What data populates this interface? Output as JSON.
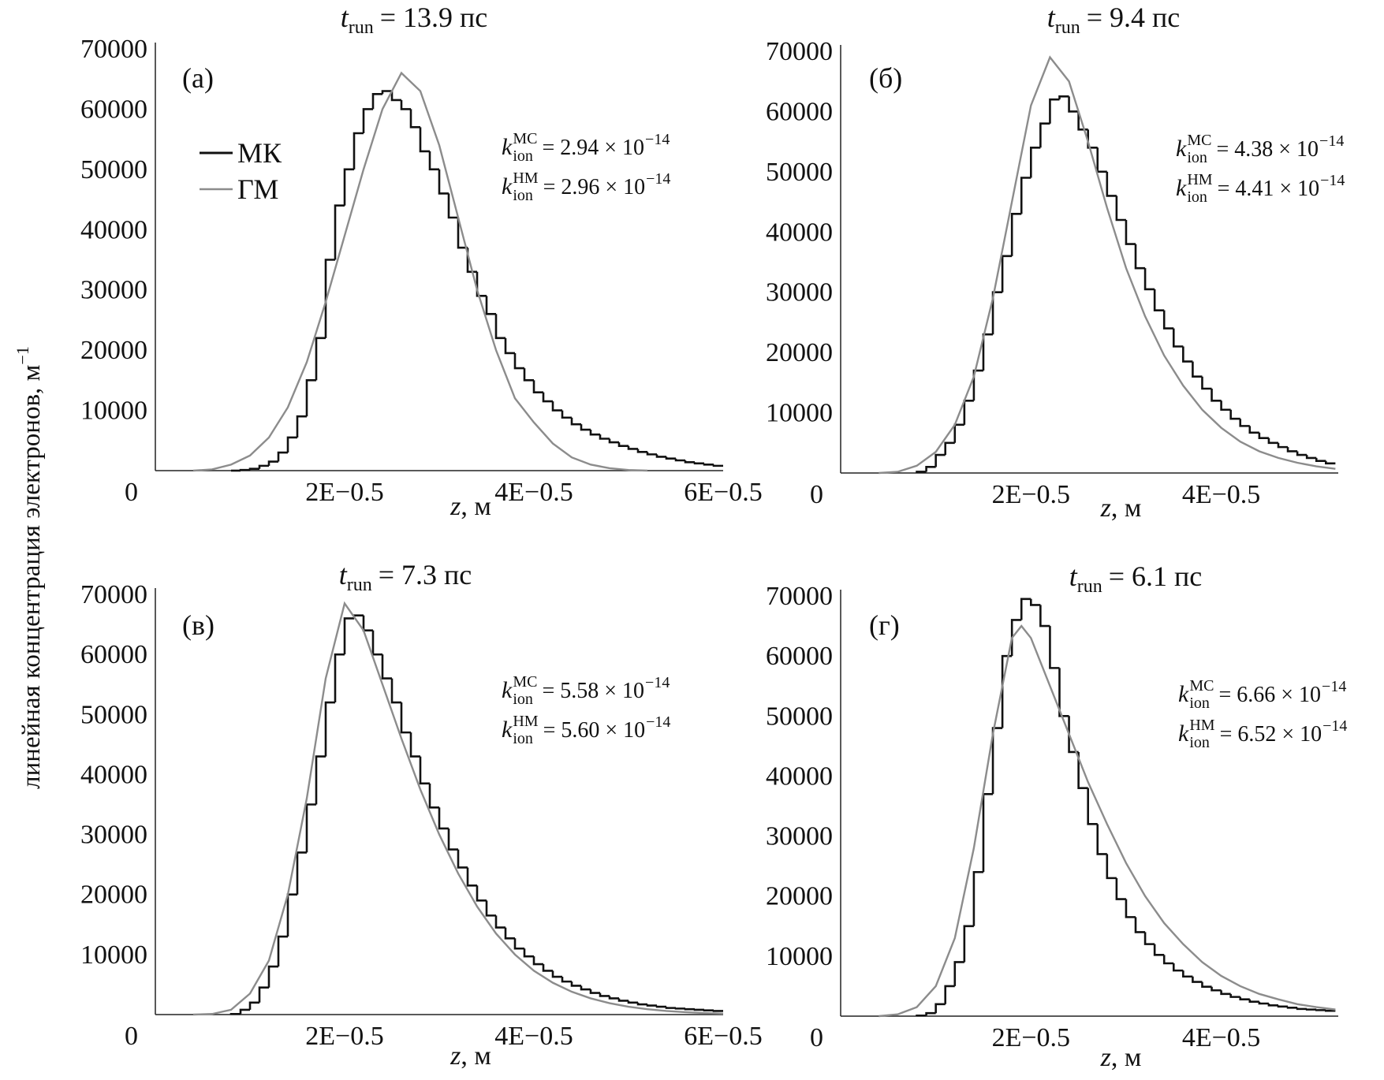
{
  "ylabel": {
    "text": "линейная концентрация электронов, м",
    "sup": "−1"
  },
  "chart_data": [
    {
      "type": "histogram",
      "title": {
        "var": "t",
        "sub": "run",
        "rest": "= 13.9 пс"
      },
      "panel": "(а)",
      "xlabel": {
        "var": "z",
        "rest": ", м"
      },
      "xlim": [
        0,
        6e-05
      ],
      "ylim": [
        0,
        70000
      ],
      "xticks": [
        {
          "value": 2e-05,
          "label": "2E−0.5"
        },
        {
          "value": 4e-05,
          "label": "4E−0.5"
        },
        {
          "value": 6e-05,
          "label": "6E−0.5"
        }
      ],
      "yticks": [
        0,
        10000,
        20000,
        30000,
        40000,
        50000,
        60000,
        70000
      ],
      "legend": "upper left",
      "annotations": [
        {
          "var": "k",
          "sub": "ion",
          "sup": "MC",
          "text": "= 2.94 × 10",
          "exp": "−14"
        },
        {
          "var": "k",
          "sub": "ion",
          "sup": "HM",
          "text": "= 2.96 × 10",
          "exp": "−14"
        }
      ],
      "series": [
        {
          "name": "МК",
          "type": "step",
          "color": "#111111",
          "bins": [
            8e-06,
            9e-06,
            1e-05,
            1.1e-05,
            1.2e-05,
            1.3e-05,
            1.4e-05,
            1.5e-05,
            1.6e-05,
            1.7e-05,
            1.8e-05,
            1.9e-05,
            2e-05,
            2.1e-05,
            2.2e-05,
            2.3e-05,
            2.4e-05,
            2.5e-05,
            2.6e-05,
            2.7e-05,
            2.8e-05,
            2.9e-05,
            3e-05,
            3.1e-05,
            3.2e-05,
            3.3e-05,
            3.4e-05,
            3.5e-05,
            3.6e-05,
            3.7e-05,
            3.8e-05,
            3.9e-05,
            4e-05,
            4.1e-05,
            4.2e-05,
            4.3e-05,
            4.4e-05,
            4.5e-05,
            4.6e-05,
            4.7e-05,
            4.8e-05,
            4.9e-05,
            5e-05,
            5.1e-05,
            5.2e-05,
            5.3e-05,
            5.4e-05,
            5.5e-05,
            5.6e-05,
            5.7e-05,
            5.8e-05,
            5.9e-05,
            6e-05
          ],
          "values": [
            0,
            100,
            300,
            800,
            1500,
            3000,
            5500,
            9000,
            15000,
            22000,
            35000,
            44000,
            50000,
            56000,
            60000,
            62500,
            63000,
            61500,
            60000,
            57000,
            53000,
            50000,
            46000,
            42000,
            37000,
            33000,
            29000,
            26000,
            22000,
            19500,
            17000,
            15000,
            13000,
            11500,
            10000,
            8800,
            7700,
            6800,
            6000,
            5300,
            4700,
            4100,
            3600,
            3100,
            2700,
            2300,
            2000,
            1700,
            1400,
            1200,
            1000,
            800
          ]
        },
        {
          "name": "ГМ",
          "type": "line",
          "color": "#8c8c8c",
          "x": [
            4e-06,
            6e-06,
            8e-06,
            1e-05,
            1.2e-05,
            1.4e-05,
            1.6e-05,
            1.8e-05,
            2e-05,
            2.2e-05,
            2.4e-05,
            2.6e-05,
            2.8e-05,
            3e-05,
            3.2e-05,
            3.4e-05,
            3.6e-05,
            3.8e-05,
            4e-05,
            4.2e-05,
            4.4e-05,
            4.6e-05,
            4.8e-05,
            5e-05,
            5.2e-05
          ],
          "values": [
            0,
            200,
            1000,
            2500,
            5500,
            10500,
            18000,
            28000,
            39000,
            50000,
            60000,
            66000,
            63000,
            54000,
            42000,
            30000,
            20000,
            12000,
            8000,
            4500,
            2200,
            1000,
            400,
            100,
            0
          ]
        }
      ]
    },
    {
      "type": "histogram",
      "title": {
        "var": "t",
        "sub": "run",
        "rest": "= 9.4 пс"
      },
      "panel": "(б)",
      "xlabel": {
        "var": "z",
        "rest": ", м"
      },
      "xlim": [
        0,
        5.23e-05
      ],
      "ylim": [
        0,
        70000
      ],
      "xticks": [
        {
          "value": 2e-05,
          "label": "2E−0.5"
        },
        {
          "value": 4e-05,
          "label": "4E−0.5"
        }
      ],
      "yticks": [
        0,
        10000,
        20000,
        30000,
        40000,
        50000,
        60000,
        70000
      ],
      "annotations": [
        {
          "var": "k",
          "sub": "ion",
          "sup": "MC",
          "text": "= 4.38 × 10",
          "exp": "−14"
        },
        {
          "var": "k",
          "sub": "ion",
          "sup": "HM",
          "text": "= 4.41 × 10",
          "exp": "−14"
        }
      ],
      "series": [
        {
          "type": "step",
          "color": "#111111",
          "bins": [
            8e-06,
            9e-06,
            1e-05,
            1.1e-05,
            1.2e-05,
            1.3e-05,
            1.4e-05,
            1.5e-05,
            1.6e-05,
            1.7e-05,
            1.8e-05,
            1.9e-05,
            2e-05,
            2.1e-05,
            2.2e-05,
            2.3e-05,
            2.4e-05,
            2.5e-05,
            2.6e-05,
            2.7e-05,
            2.8e-05,
            2.9e-05,
            3e-05,
            3.1e-05,
            3.2e-05,
            3.3e-05,
            3.4e-05,
            3.5e-05,
            3.6e-05,
            3.7e-05,
            3.8e-05,
            3.9e-05,
            4e-05,
            4.1e-05,
            4.2e-05,
            4.3e-05,
            4.4e-05,
            4.5e-05,
            4.6e-05,
            4.7e-05,
            4.8e-05,
            4.9e-05,
            5e-05,
            5.1e-05,
            5.2e-05
          ],
          "values": [
            200,
            1000,
            3000,
            5000,
            8000,
            12000,
            17000,
            23000,
            30000,
            36000,
            43000,
            49000,
            54000,
            58000,
            62000,
            62500,
            60000,
            57000,
            54000,
            50000,
            46000,
            42000,
            38000,
            34000,
            30500,
            27000,
            24000,
            21000,
            18500,
            16000,
            14000,
            12000,
            10500,
            9000,
            7800,
            6700,
            5800,
            5000,
            4300,
            3600,
            3000,
            2500,
            2000,
            1600
          ]
        },
        {
          "type": "line",
          "color": "#8c8c8c",
          "x": [
            4e-06,
            6e-06,
            8e-06,
            1e-05,
            1.2e-05,
            1.4e-05,
            1.6e-05,
            1.8e-05,
            2e-05,
            2.2e-05,
            2.4e-05,
            2.6e-05,
            2.8e-05,
            3e-05,
            3.2e-05,
            3.4e-05,
            3.6e-05,
            3.8e-05,
            4e-05,
            4.2e-05,
            4.4e-05,
            4.6e-05,
            4.8e-05,
            5e-05,
            5.2e-05
          ],
          "values": [
            0,
            200,
            1200,
            3500,
            8000,
            16000,
            29000,
            45000,
            61000,
            69000,
            65000,
            55000,
            44000,
            34000,
            26000,
            19500,
            14500,
            10500,
            7500,
            5200,
            3600,
            2500,
            1700,
            1100,
            700
          ]
        }
      ]
    },
    {
      "type": "histogram",
      "title": {
        "var": "t",
        "sub": "run",
        "rest": "= 7.3 пс"
      },
      "panel": "(в)",
      "xlabel": {
        "var": "z",
        "rest": ", м"
      },
      "xlim": [
        0,
        6e-05
      ],
      "ylim": [
        0,
        70000
      ],
      "xticks": [
        {
          "value": 2e-05,
          "label": "2E−0.5"
        },
        {
          "value": 4e-05,
          "label": "4E−0.5"
        },
        {
          "value": 6e-05,
          "label": "6E−0.5"
        }
      ],
      "yticks": [
        0,
        10000,
        20000,
        30000,
        40000,
        50000,
        60000,
        70000
      ],
      "annotations": [
        {
          "var": "k",
          "sub": "ion",
          "sup": "MC",
          "text": "= 5.58 × 10",
          "exp": "−14"
        },
        {
          "var": "k",
          "sub": "ion",
          "sup": "HM",
          "text": "= 5.60 × 10",
          "exp": "−14"
        }
      ],
      "series": [
        {
          "type": "step",
          "color": "#111111",
          "bins": [
            8e-06,
            9e-06,
            1e-05,
            1.1e-05,
            1.2e-05,
            1.3e-05,
            1.4e-05,
            1.5e-05,
            1.6e-05,
            1.7e-05,
            1.8e-05,
            1.9e-05,
            2e-05,
            2.1e-05,
            2.2e-05,
            2.3e-05,
            2.4e-05,
            2.5e-05,
            2.6e-05,
            2.7e-05,
            2.8e-05,
            2.9e-05,
            3e-05,
            3.1e-05,
            3.2e-05,
            3.3e-05,
            3.4e-05,
            3.5e-05,
            3.6e-05,
            3.7e-05,
            3.8e-05,
            3.9e-05,
            4e-05,
            4.1e-05,
            4.2e-05,
            4.3e-05,
            4.4e-05,
            4.5e-05,
            4.6e-05,
            4.7e-05,
            4.8e-05,
            4.9e-05,
            5e-05,
            5.1e-05,
            5.2e-05,
            5.3e-05,
            5.4e-05,
            5.5e-05,
            5.6e-05,
            5.7e-05,
            5.8e-05,
            5.9e-05,
            6e-05
          ],
          "values": [
            100,
            800,
            2000,
            4500,
            8000,
            13000,
            20000,
            27000,
            35000,
            43000,
            52000,
            60000,
            66000,
            66500,
            64000,
            60000,
            56000,
            52000,
            47000,
            43000,
            38500,
            34500,
            31000,
            27500,
            24500,
            21500,
            19000,
            16500,
            14500,
            12700,
            11000,
            9700,
            8400,
            7300,
            6300,
            5500,
            4800,
            4200,
            3600,
            3100,
            2700,
            2300,
            2000,
            1700,
            1500,
            1300,
            1100,
            1000,
            900,
            800,
            700,
            600
          ]
        },
        {
          "type": "line",
          "color": "#8c8c8c",
          "x": [
            4e-06,
            6e-06,
            8e-06,
            1e-05,
            1.2e-05,
            1.4e-05,
            1.6e-05,
            1.8e-05,
            2e-05,
            2.2e-05,
            2.4e-05,
            2.6e-05,
            2.8e-05,
            3e-05,
            3.2e-05,
            3.4e-05,
            3.6e-05,
            3.8e-05,
            4e-05,
            4.2e-05,
            4.4e-05,
            4.6e-05,
            4.8e-05,
            5e-05,
            5.2e-05,
            5.4e-05,
            5.6e-05,
            5.8e-05,
            6e-05
          ],
          "values": [
            0,
            100,
            800,
            3500,
            9000,
            20000,
            36000,
            56000,
            68500,
            64000,
            55000,
            46000,
            37500,
            30000,
            23500,
            18000,
            13500,
            10000,
            7300,
            5300,
            3800,
            2700,
            1900,
            1300,
            900,
            600,
            400,
            250,
            150
          ]
        }
      ]
    },
    {
      "type": "histogram",
      "title": {
        "var": "t",
        "sub": "run",
        "rest": "= 6.1 пс"
      },
      "panel": "(г)",
      "xlabel": {
        "var": "z",
        "rest": ", м"
      },
      "xlim": [
        0,
        5.23e-05
      ],
      "ylim": [
        0,
        70000
      ],
      "xticks": [
        {
          "value": 2e-05,
          "label": "2E−0.5"
        },
        {
          "value": 4e-05,
          "label": "4E−0.5"
        }
      ],
      "yticks": [
        0,
        10000,
        20000,
        30000,
        40000,
        50000,
        60000,
        70000
      ],
      "annotations": [
        {
          "var": "k",
          "sub": "ion",
          "sup": "MC",
          "text": "= 6.66 × 10",
          "exp": "−14"
        },
        {
          "var": "k",
          "sub": "ion",
          "sup": "HM",
          "text": "= 6.52 × 10",
          "exp": "−14"
        }
      ],
      "series": [
        {
          "type": "step",
          "color": "#111111",
          "bins": [
            8e-06,
            9e-06,
            1e-05,
            1.1e-05,
            1.2e-05,
            1.3e-05,
            1.4e-05,
            1.5e-05,
            1.6e-05,
            1.7e-05,
            1.8e-05,
            1.9e-05,
            2e-05,
            2.1e-05,
            2.2e-05,
            2.3e-05,
            2.4e-05,
            2.5e-05,
            2.6e-05,
            2.7e-05,
            2.8e-05,
            2.9e-05,
            3e-05,
            3.1e-05,
            3.2e-05,
            3.3e-05,
            3.4e-05,
            3.5e-05,
            3.6e-05,
            3.7e-05,
            3.8e-05,
            3.9e-05,
            4e-05,
            4.1e-05,
            4.2e-05,
            4.3e-05,
            4.4e-05,
            4.5e-05,
            4.6e-05,
            4.7e-05,
            4.8e-05,
            4.9e-05,
            5e-05,
            5.1e-05,
            5.2e-05
          ],
          "values": [
            100,
            500,
            2000,
            5000,
            9000,
            15000,
            24000,
            37000,
            48000,
            60000,
            66000,
            69500,
            68500,
            65000,
            58000,
            50000,
            44000,
            38000,
            32000,
            27000,
            23000,
            19500,
            16500,
            14000,
            12000,
            10200,
            8800,
            7600,
            6600,
            5700,
            4900,
            4300,
            3700,
            3200,
            2800,
            2400,
            2100,
            1800,
            1600,
            1400,
            1200,
            1100,
            1000,
            900
          ]
        },
        {
          "type": "line",
          "color": "#8c8c8c",
          "x": [
            4e-06,
            6e-06,
            8e-06,
            1e-05,
            1.2e-05,
            1.4e-05,
            1.6e-05,
            1.8e-05,
            1.9e-05,
            2e-05,
            2.2e-05,
            2.4e-05,
            2.6e-05,
            2.8e-05,
            3e-05,
            3.2e-05,
            3.4e-05,
            3.6e-05,
            3.8e-05,
            4e-05,
            4.2e-05,
            4.4e-05,
            4.6e-05,
            4.8e-05,
            5e-05,
            5.2e-05
          ],
          "values": [
            0,
            300,
            1500,
            5000,
            13000,
            28000,
            47000,
            63000,
            65000,
            63000,
            55000,
            47000,
            39000,
            32000,
            25500,
            20000,
            15500,
            12000,
            9000,
            6700,
            5000,
            3700,
            2800,
            2000,
            1500,
            1100
          ]
        }
      ]
    }
  ]
}
